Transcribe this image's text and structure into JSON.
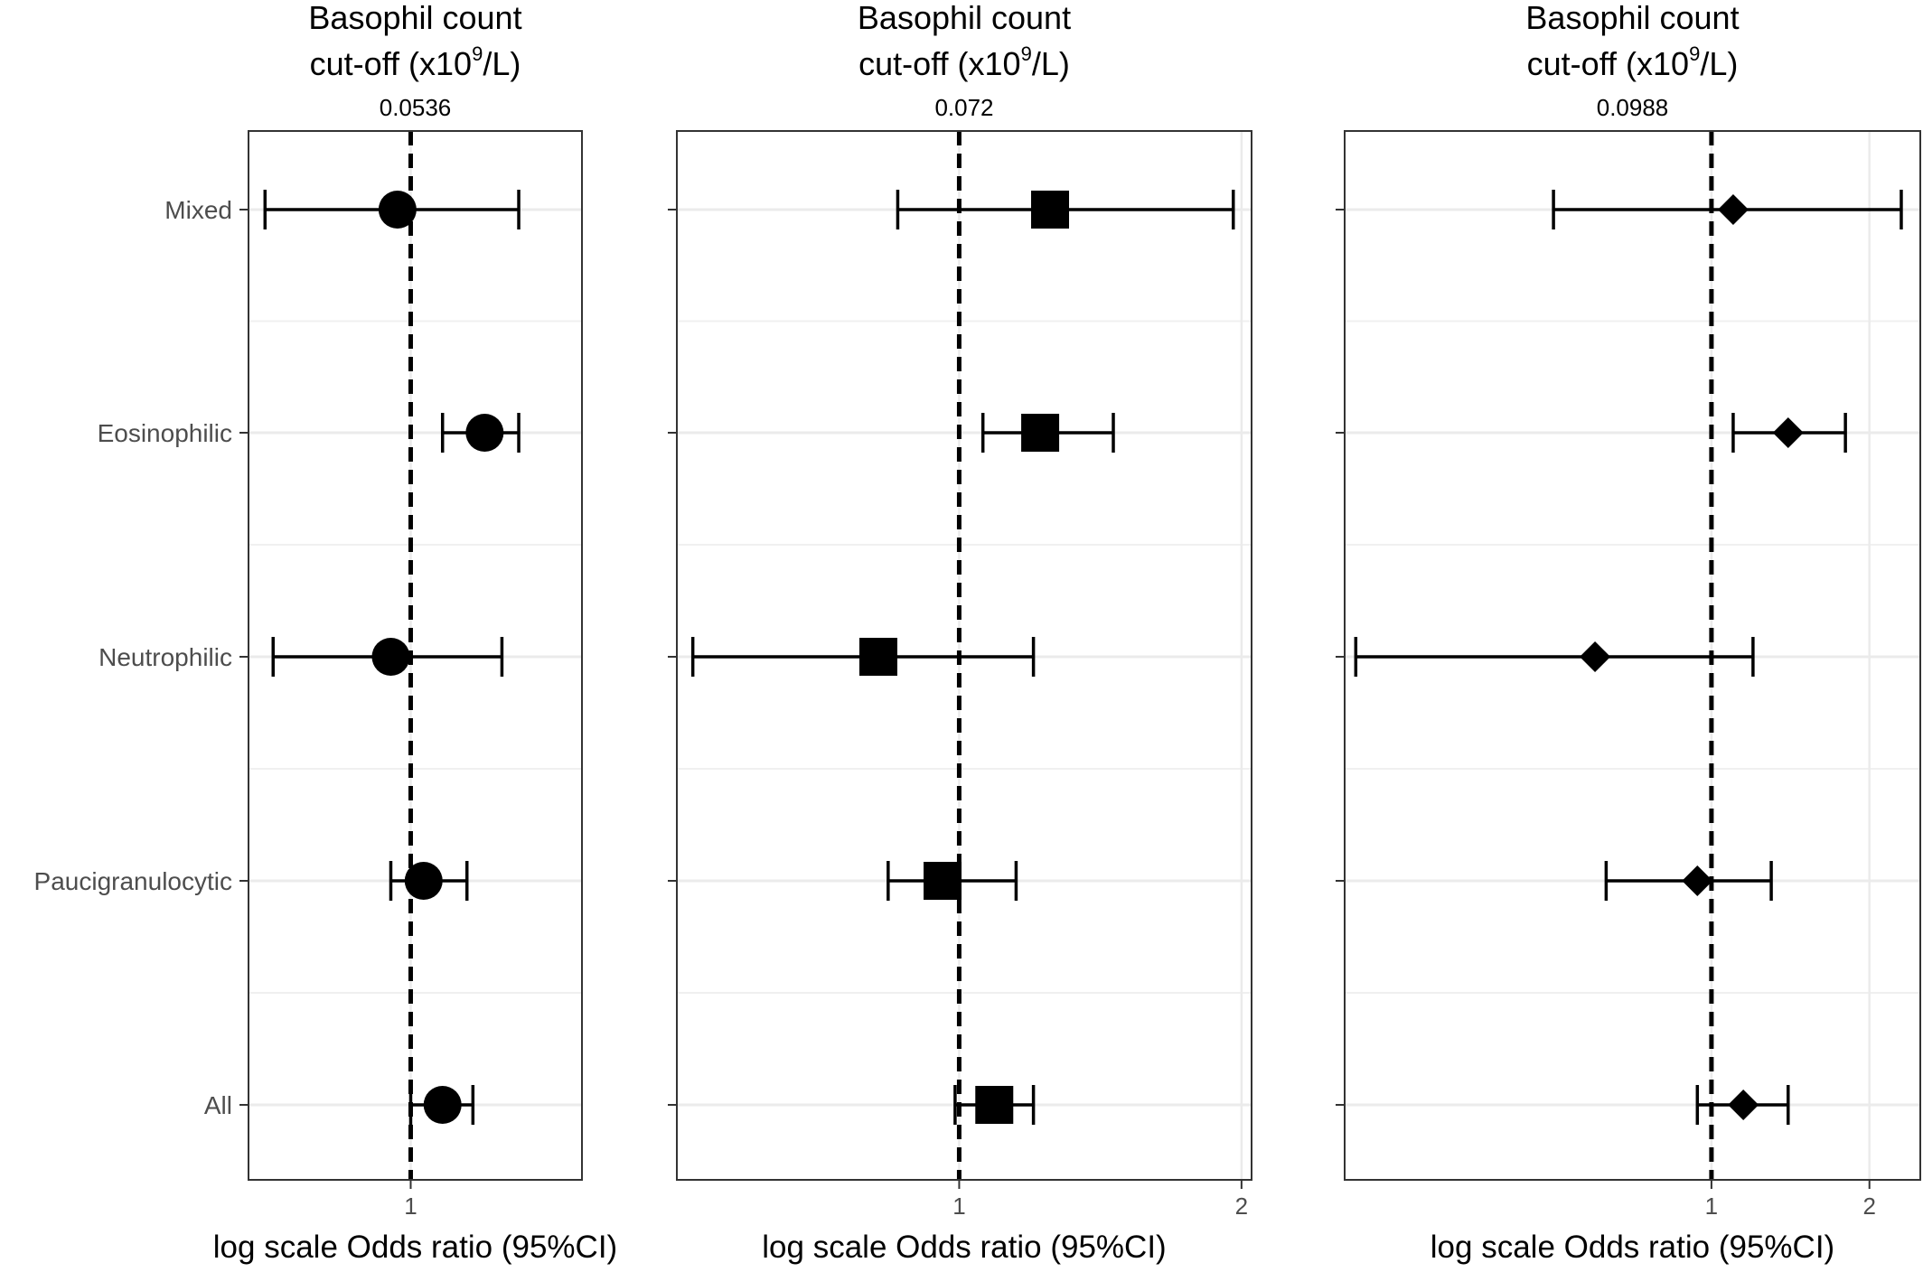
{
  "chart_data": {
    "type": "forest",
    "categories": [
      "Mixed",
      "Eosinophilic",
      "Neutrophilic",
      "Paucigranulocytic",
      "All"
    ],
    "x_scale": "log",
    "reference_line": 1,
    "panels": [
      {
        "title_line1": "Basophil count",
        "title_pre": "cut-off (x10",
        "title_sup": "9",
        "title_post": "/L)",
        "subtitle": "0.0536",
        "xlabel": "log scale Odds ratio  (95%CI)",
        "marker": "circle",
        "xlim": [
          0.78,
          1.3
        ],
        "xticks": [
          1
        ],
        "xtick_labels": [
          "1"
        ],
        "points": [
          {
            "category": "Mixed",
            "or": 0.98,
            "lo": 0.8,
            "hi": 1.18
          },
          {
            "category": "Eosinophilic",
            "or": 1.12,
            "lo": 1.05,
            "hi": 1.18
          },
          {
            "category": "Neutrophilic",
            "or": 0.97,
            "lo": 0.81,
            "hi": 1.15
          },
          {
            "category": "Paucigranulocytic",
            "or": 1.02,
            "lo": 0.97,
            "hi": 1.09
          },
          {
            "category": "All",
            "or": 1.05,
            "lo": 1.0,
            "hi": 1.1
          }
        ]
      },
      {
        "title_line1": "Basophil count",
        "title_pre": "cut-off (x10",
        "title_sup": "9",
        "title_post": "/L)",
        "subtitle": "0.072",
        "xlabel": "log scale Odds ratio  (95%CI)",
        "marker": "square",
        "xlim": [
          0.5,
          2.05
        ],
        "xticks": [
          1,
          2
        ],
        "xtick_labels": [
          "1",
          "2"
        ],
        "points": [
          {
            "category": "Mixed",
            "or": 1.25,
            "lo": 0.86,
            "hi": 1.96
          },
          {
            "category": "Eosinophilic",
            "or": 1.22,
            "lo": 1.06,
            "hi": 1.46
          },
          {
            "category": "Neutrophilic",
            "or": 0.82,
            "lo": 0.52,
            "hi": 1.2
          },
          {
            "category": "Paucigranulocytic",
            "or": 0.96,
            "lo": 0.84,
            "hi": 1.15
          },
          {
            "category": "All",
            "or": 1.09,
            "lo": 0.99,
            "hi": 1.2
          }
        ]
      },
      {
        "title_line1": "Basophil count",
        "title_pre": "cut-off (x10",
        "title_sup": "9",
        "title_post": "/L)",
        "subtitle": "0.0988",
        "xlabel": "log scale Odds ratio  (95%CI)",
        "marker": "diamond",
        "xlim": [
          0.2,
          2.5
        ],
        "xticks": [
          1,
          2
        ],
        "xtick_labels": [
          "1",
          "2"
        ],
        "points": [
          {
            "category": "Mixed",
            "or": 1.1,
            "lo": 0.5,
            "hi": 2.3
          },
          {
            "category": "Eosinophilic",
            "or": 1.4,
            "lo": 1.1,
            "hi": 1.8
          },
          {
            "category": "Neutrophilic",
            "or": 0.6,
            "lo": 0.21,
            "hi": 1.2
          },
          {
            "category": "Paucigranulocytic",
            "or": 0.94,
            "lo": 0.63,
            "hi": 1.3
          },
          {
            "category": "All",
            "or": 1.15,
            "lo": 0.94,
            "hi": 1.4
          }
        ]
      }
    ]
  }
}
